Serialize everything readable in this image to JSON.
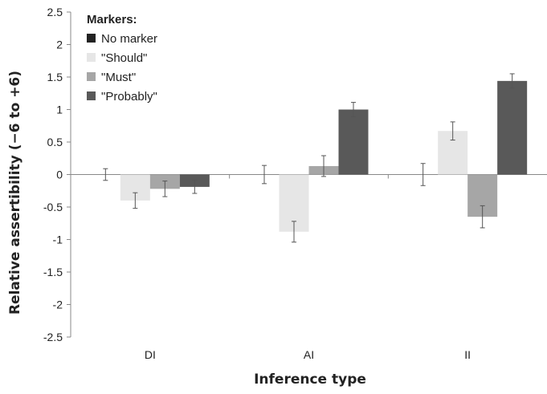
{
  "chart_data": {
    "type": "bar",
    "xlabel": "Inference type",
    "ylabel": "Relative assertibility (−6 to +6)",
    "categories": [
      "DI",
      "AI",
      "II"
    ],
    "ylim": [
      -2.5,
      2.5
    ],
    "yticks": [
      "2.5",
      "2",
      "1.5",
      "1",
      "0.5",
      "0",
      "-0.5",
      "-1",
      "-1.5",
      "-2",
      "-2.5"
    ],
    "legend_title": "Markers:",
    "legend_position": "top-left",
    "grid": false,
    "series": [
      {
        "name": "No marker",
        "color": "#222222",
        "values": [
          0.0,
          0.0,
          0.0
        ],
        "errors": [
          0.09,
          0.14,
          0.17
        ]
      },
      {
        "name": "\"Should\"",
        "color": "#e6e6e6",
        "values": [
          -0.4,
          -0.88,
          0.67
        ],
        "errors": [
          0.12,
          0.16,
          0.14
        ]
      },
      {
        "name": "\"Must\"",
        "color": "#a6a6a6",
        "values": [
          -0.22,
          0.13,
          -0.65
        ],
        "errors": [
          0.12,
          0.16,
          0.17
        ]
      },
      {
        "name": "\"Probably\"",
        "color": "#595959",
        "values": [
          -0.19,
          1.0,
          1.44
        ],
        "errors": [
          0.1,
          0.11,
          0.11
        ]
      }
    ]
  }
}
